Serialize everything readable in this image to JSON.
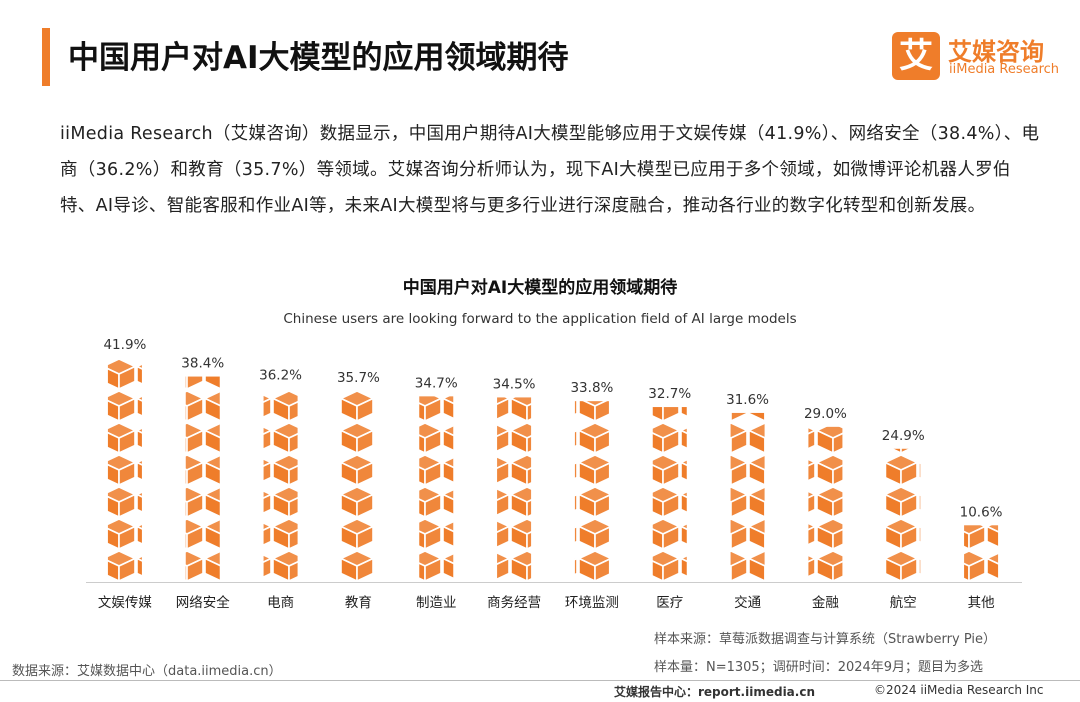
{
  "header": {
    "title": "中国用户对AI大模型的应用领域期待",
    "logo_mark": "艾",
    "logo_name": "艾媒咨询",
    "logo_en": "iiMedia Research"
  },
  "paragraph": "iiMedia Research（艾媒咨询）数据显示，中国用户期待AI大模型能够应用于文娱传媒（41.9%）、网络安全（38.4%）、电商（36.2%）和教育（35.7%）等领域。艾媒咨询分析师认为，现下AI大模型已应用于多个领域，如微博评论机器人罗伯特、AI导诊、智能客服和作业AI等，未来AI大模型将与更多行业进行深度融合，推动各行业的数字化转型和创新发展。",
  "chart_data": {
    "type": "pictograph",
    "title": "中国用户对AI大模型的应用领域期待",
    "subtitle": "Chinese users are looking forward to the application field of AI large models",
    "categories": [
      "文娱传媒",
      "网络安全",
      "电商",
      "教育",
      "制造业",
      "商务经营",
      "环境监测",
      "医疗",
      "交通",
      "金融",
      "航空",
      "其他"
    ],
    "values": [
      41.9,
      38.4,
      36.2,
      35.7,
      34.7,
      34.5,
      33.8,
      32.7,
      31.6,
      29.0,
      24.9,
      10.6
    ],
    "value_labels": [
      "41.9%",
      "38.4%",
      "36.2%",
      "35.7%",
      "34.7%",
      "34.5%",
      "33.8%",
      "32.7%",
      "31.6%",
      "29.0%",
      "24.9%",
      "10.6%"
    ],
    "color": "#ef7d2a"
  },
  "footer": {
    "sample_source": "样本来源：草莓派数据调查与计算系统（Strawberry Pie）",
    "sample_size": "样本量：N=1305；调研时间：2024年9月；题目为多选",
    "data_source": "数据来源：艾媒数据中心（data.iimedia.cn）",
    "report_center": "艾媒报告中心：report.iimedia.cn",
    "copyright": "©2024 iiMedia Research Inc"
  }
}
